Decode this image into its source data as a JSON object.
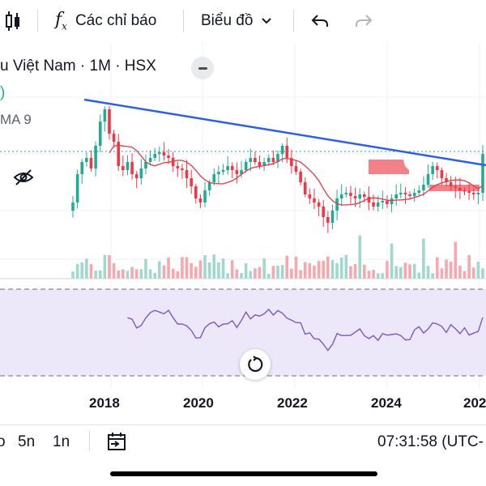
{
  "toolbar": {
    "indicators_label": "Các chỉ báo",
    "chart_type_label": "Biểu đồ"
  },
  "legend": {
    "symbol_line": "u Việt Nam · 1M · HSX",
    "value_fragment": ")",
    "ma_label": "MA 9"
  },
  "time_axis": {
    "labels": [
      "2018",
      "2020",
      "2022",
      "2024",
      "202"
    ]
  },
  "bottom_bar": {
    "range_left": "o",
    "range_5y": "5n",
    "range_1y": "1n",
    "clock": "07:31:58 (UTC-"
  },
  "colors": {
    "up": "#22ab94",
    "down": "#f23645",
    "trendline": "#2c5fe6",
    "ma_line": "#e03b45",
    "rsi_line": "#7e57c2",
    "rsi_band": "#ede8f9",
    "cloud": "#f06b76"
  },
  "chart_data": {
    "type": "candlestick",
    "title": "u Việt Nam · 1M · HSX",
    "x_axis_years": [
      "2018",
      "2020",
      "2022",
      "2024"
    ],
    "indicators": [
      "MA 9",
      "Volume",
      "RSI"
    ],
    "trendline": "descending line from 2017 high through 2022 high to 2025",
    "note": "monthly candles, approx 2017–2025"
  }
}
